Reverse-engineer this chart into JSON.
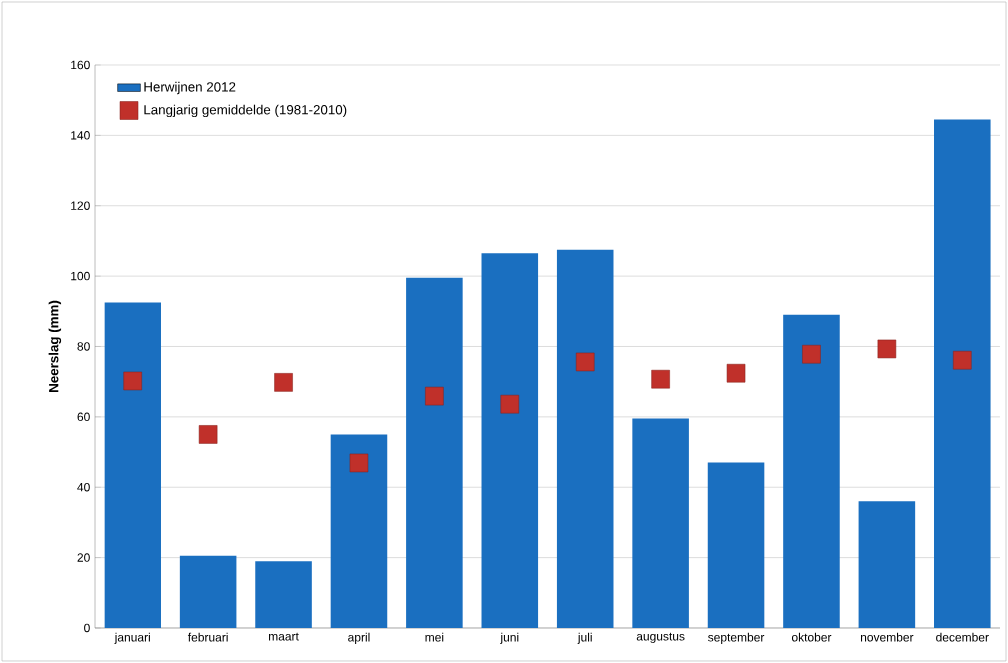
{
  "chart_data": {
    "type": "bar",
    "ylabel": "Neerslag (mm)",
    "categories": [
      "januari",
      "februari",
      "maart",
      "april",
      "mei",
      "juni",
      "juli",
      "augustus",
      "september",
      "oktober",
      "november",
      "december"
    ],
    "series": [
      {
        "name": "Herwijnen 2012",
        "color": "#1a6fc0",
        "values": [
          92.5,
          20.5,
          19,
          55,
          99.5,
          106.5,
          107.5,
          59.5,
          47,
          89,
          36,
          144.5
        ]
      },
      {
        "name": "Langjarig gemiddelde (1981-2010)",
        "type": "scatter",
        "marker": "square",
        "color": "#c0302a",
        "values": [
          70.2,
          55,
          69.8,
          46.9,
          65.9,
          63.6,
          75.6,
          70.7,
          72.4,
          77.8,
          79.3,
          76.1
        ]
      }
    ],
    "ylim": [
      0,
      160
    ],
    "yticks": [
      0,
      20,
      40,
      60,
      80,
      100,
      120,
      140,
      160
    ],
    "grid": "y",
    "legend": "top left"
  }
}
